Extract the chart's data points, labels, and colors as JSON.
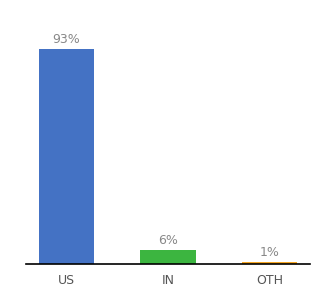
{
  "categories": [
    "US",
    "IN",
    "OTH"
  ],
  "values": [
    93,
    6,
    1
  ],
  "bar_colors": [
    "#4472c4",
    "#3cb540",
    "#f5a623"
  ],
  "labels": [
    "93%",
    "6%",
    "1%"
  ],
  "ylim": [
    0,
    105
  ],
  "background_color": "#ffffff",
  "label_fontsize": 9,
  "tick_fontsize": 9,
  "bar_width": 0.55
}
